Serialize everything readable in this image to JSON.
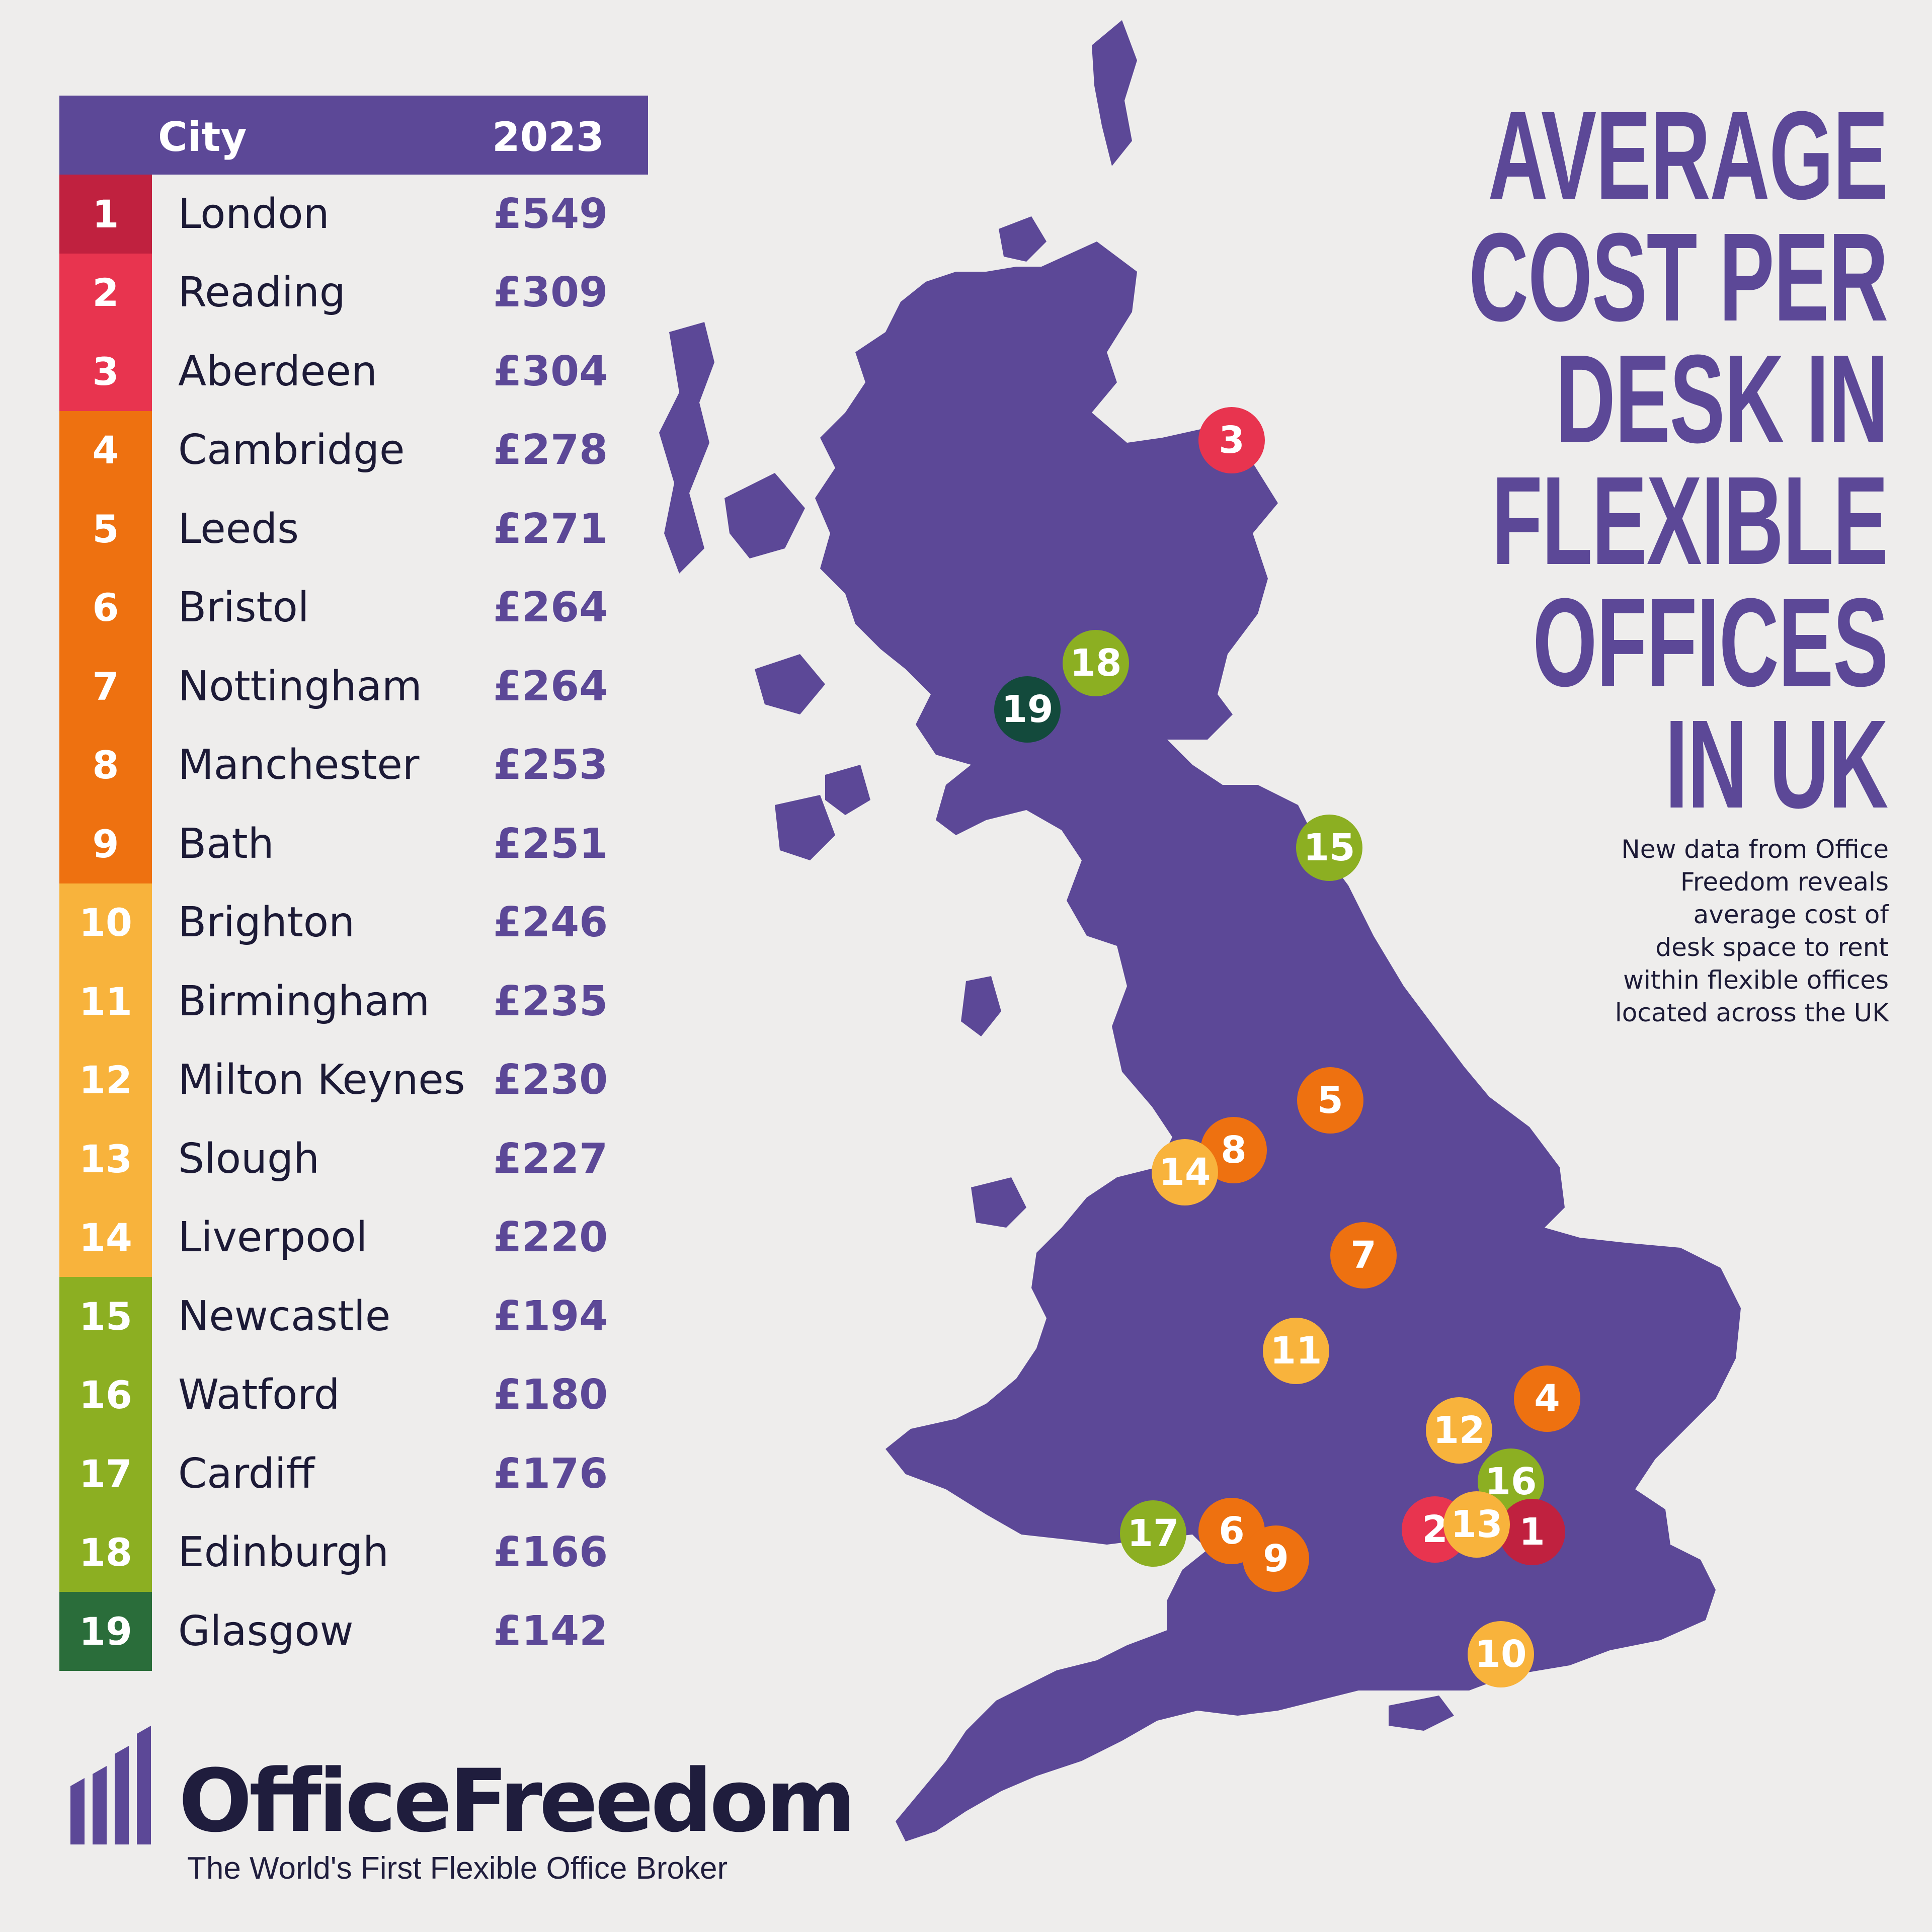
{
  "table": {
    "header_city": "City",
    "header_year": "2023",
    "rows": [
      {
        "rank": "1",
        "city": "London",
        "cost": "£549",
        "color": "#c0213f"
      },
      {
        "rank": "2",
        "city": "Reading",
        "cost": "£309",
        "color": "#e8344f"
      },
      {
        "rank": "3",
        "city": "Aberdeen",
        "cost": "£304",
        "color": "#e8344f"
      },
      {
        "rank": "4",
        "city": "Cambridge",
        "cost": "£278",
        "color": "#ee7110"
      },
      {
        "rank": "5",
        "city": "Leeds",
        "cost": "£271",
        "color": "#ee7110"
      },
      {
        "rank": "6",
        "city": "Bristol",
        "cost": "£264",
        "color": "#ee7110"
      },
      {
        "rank": "7",
        "city": "Nottingham",
        "cost": "£264",
        "color": "#ee7110"
      },
      {
        "rank": "8",
        "city": "Manchester",
        "cost": "£253",
        "color": "#ee7110"
      },
      {
        "rank": "9",
        "city": "Bath",
        "cost": "£251",
        "color": "#ee7110"
      },
      {
        "rank": "10",
        "city": "Brighton",
        "cost": "£246",
        "color": "#f8b33c"
      },
      {
        "rank": "11",
        "city": "Birmingham",
        "cost": "£235",
        "color": "#f8b33c"
      },
      {
        "rank": "12",
        "city": "Milton Keynes",
        "cost": "£230",
        "color": "#f8b33c"
      },
      {
        "rank": "13",
        "city": "Slough",
        "cost": "£227",
        "color": "#f8b33c"
      },
      {
        "rank": "14",
        "city": "Liverpool",
        "cost": "£220",
        "color": "#f8b33c"
      },
      {
        "rank": "15",
        "city": "Newcastle",
        "cost": "£194",
        "color": "#8caf22"
      },
      {
        "rank": "16",
        "city": "Watford",
        "cost": "£180",
        "color": "#8caf22"
      },
      {
        "rank": "17",
        "city": "Cardiff",
        "cost": "£176",
        "color": "#8caf22"
      },
      {
        "rank": "18",
        "city": "Edinburgh",
        "cost": "£166",
        "color": "#8caf22"
      },
      {
        "rank": "19",
        "city": "Glasgow",
        "cost": "£142",
        "color": "#2a6d3a"
      }
    ]
  },
  "headline": {
    "lines": [
      "AVERAGE",
      "COST PER",
      "DESK IN",
      "FLEXIBLE",
      "OFFICES",
      "IN UK"
    ]
  },
  "subtext": {
    "lines": [
      "New data from Office",
      "Freedom reveals",
      "average cost of",
      "desk space to rent",
      "within flexible offices",
      "located across the UK"
    ]
  },
  "map": {
    "land_color": "#5c4897",
    "markers": [
      {
        "label": "3",
        "color": "#e8344f"
      },
      {
        "label": "18",
        "color": "#8caf22"
      },
      {
        "label": "19",
        "color": "#134a3c"
      },
      {
        "label": "15",
        "color": "#8caf22"
      },
      {
        "label": "5",
        "color": "#ee7110"
      },
      {
        "label": "8",
        "color": "#ee7110"
      },
      {
        "label": "14",
        "color": "#f8b33c"
      },
      {
        "label": "7",
        "color": "#ee7110"
      },
      {
        "label": "11",
        "color": "#f8b33c"
      },
      {
        "label": "4",
        "color": "#ee7110"
      },
      {
        "label": "12",
        "color": "#f8b33c"
      },
      {
        "label": "16",
        "color": "#8caf22"
      },
      {
        "label": "2",
        "color": "#e8344f"
      },
      {
        "label": "1",
        "color": "#c0213f"
      },
      {
        "label": "13",
        "color": "#f8b33c"
      },
      {
        "label": "17",
        "color": "#8caf22"
      },
      {
        "label": "6",
        "color": "#ee7110"
      },
      {
        "label": "9",
        "color": "#ee7110"
      },
      {
        "label": "10",
        "color": "#f8b33c"
      }
    ]
  },
  "brand": {
    "name": "OfficeFreedom",
    "tagline": "The World's First Flexible Office Broker",
    "dark_color": "#1f1d3d",
    "accent_color": "#5c4897"
  }
}
